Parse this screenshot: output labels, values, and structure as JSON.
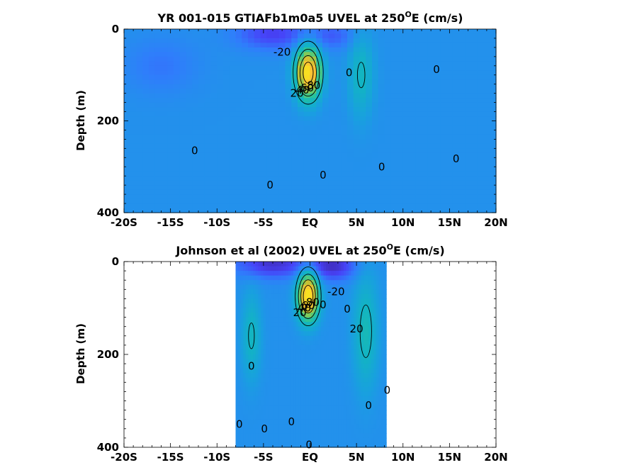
{
  "chart_data": [
    {
      "type": "heatmap",
      "title": "YR 001-015 GTIAFb1m0a5 UVEL at 250",
      "title_sup": "O",
      "title_tail": "E (cm/s)",
      "xlabel": "",
      "ylabel": "Depth (m)",
      "xlim": [
        -20,
        20
      ],
      "ylim": [
        400,
        0
      ],
      "x_ticks": [
        -20,
        -15,
        -10,
        -5,
        0,
        5,
        10,
        15,
        20
      ],
      "x_tick_labels": [
        "-20S",
        "-15S",
        "-10S",
        "-5S",
        "EQ",
        "5N",
        "10N",
        "15N",
        "20N"
      ],
      "y_ticks": [
        0,
        200,
        400
      ],
      "y_tick_labels": [
        "0",
        "200",
        "400"
      ],
      "data_extent_lat": [
        -20,
        20
      ],
      "contour_levels": [
        -20,
        0,
        20,
        40,
        60,
        80
      ],
      "contour_labels": [
        {
          "text": "-20",
          "lat": -3,
          "depth": 50
        },
        {
          "text": "0",
          "lat": 4.2,
          "depth": 95
        },
        {
          "text": "0",
          "lat": 13.6,
          "depth": 88
        },
        {
          "text": "20",
          "lat": -1.4,
          "depth": 140
        },
        {
          "text": "40",
          "lat": -0.8,
          "depth": 133
        },
        {
          "text": "60",
          "lat": -0.3,
          "depth": 128
        },
        {
          "text": "80",
          "lat": 0.4,
          "depth": 123
        },
        {
          "text": "0",
          "lat": -12.4,
          "depth": 265
        },
        {
          "text": "0",
          "lat": -4.3,
          "depth": 340
        },
        {
          "text": "0",
          "lat": 1.4,
          "depth": 318
        },
        {
          "text": "0",
          "lat": 7.7,
          "depth": 300
        },
        {
          "text": "0",
          "lat": 15.7,
          "depth": 283
        }
      ],
      "jets": [
        {
          "lat": -0.2,
          "depth": 95,
          "peak": 95,
          "lat_width": 1.3,
          "depth_width": 55
        },
        {
          "lat": 5.5,
          "depth": 100,
          "peak": 22,
          "lat_width": 1.3,
          "depth_width": 90
        }
      ],
      "westward": [
        {
          "lat": -4,
          "depth": 10,
          "value": -24,
          "lat_width": 4,
          "depth_width": 35
        },
        {
          "lat": 2.5,
          "depth": 15,
          "value": -15,
          "lat_width": 2.5,
          "depth_width": 30
        },
        {
          "lat": -16,
          "depth": 80,
          "value": -10,
          "lat_width": 4,
          "depth_width": 60
        }
      ],
      "colormap": [
        "#3e26a8",
        "#4743f8",
        "#2f7efb",
        "#199fe0",
        "#12b4c3",
        "#29c29a",
        "#72cc62",
        "#c5c033",
        "#fbbf35",
        "#f9e021"
      ],
      "color_range": [
        -35,
        95
      ]
    },
    {
      "type": "heatmap",
      "title": "Johnson et al (2002) UVEL at 250",
      "title_sup": "O",
      "title_tail": "E (cm/s)",
      "xlabel": "",
      "ylabel": "Depth (m)",
      "xlim": [
        -20,
        20
      ],
      "ylim": [
        400,
        0
      ],
      "x_ticks": [
        -20,
        -15,
        -10,
        -5,
        0,
        5,
        10,
        15,
        20
      ],
      "x_tick_labels": [
        "-20S",
        "-15S",
        "-10S",
        "-5S",
        "EQ",
        "5N",
        "10N",
        "15N",
        "20N"
      ],
      "y_ticks": [
        0,
        200,
        400
      ],
      "y_tick_labels": [
        "0",
        "200",
        "400"
      ],
      "data_extent_lat": [
        -8,
        8.2
      ],
      "contour_levels": [
        -20,
        0,
        20,
        40,
        60,
        80
      ],
      "contour_labels": [
        {
          "text": "-20",
          "lat": 2.8,
          "depth": 65
        },
        {
          "text": "0",
          "lat": -6.3,
          "depth": 225
        },
        {
          "text": "0",
          "lat": -7.6,
          "depth": 350
        },
        {
          "text": "0",
          "lat": -4.9,
          "depth": 360
        },
        {
          "text": "0",
          "lat": -2,
          "depth": 345
        },
        {
          "text": "0",
          "lat": 1.4,
          "depth": 93
        },
        {
          "text": "0",
          "lat": 4,
          "depth": 102
        },
        {
          "text": "0",
          "lat": -0.1,
          "depth": 395
        },
        {
          "text": "0",
          "lat": 6.3,
          "depth": 310
        },
        {
          "text": "0",
          "lat": 8.3,
          "depth": 277
        },
        {
          "text": "20",
          "lat": 5,
          "depth": 145
        },
        {
          "text": "20",
          "lat": -1.1,
          "depth": 110
        },
        {
          "text": "40",
          "lat": -0.6,
          "depth": 100
        },
        {
          "text": "60",
          "lat": -0.2,
          "depth": 95
        },
        {
          "text": "80",
          "lat": 0.3,
          "depth": 88
        }
      ],
      "jets": [
        {
          "lat": -0.2,
          "depth": 75,
          "peak": 100,
          "lat_width": 1.1,
          "depth_width": 50
        },
        {
          "lat": 6,
          "depth": 150,
          "peak": 25,
          "lat_width": 1.3,
          "depth_width": 120
        },
        {
          "lat": -6.3,
          "depth": 160,
          "peak": 22,
          "lat_width": 1.0,
          "depth_width": 90
        }
      ],
      "westward": [
        {
          "lat": -4,
          "depth": 5,
          "value": -30,
          "lat_width": 4,
          "depth_width": 30
        },
        {
          "lat": 2.5,
          "depth": 10,
          "value": -30,
          "lat_width": 2.5,
          "depth_width": 30
        }
      ],
      "colormap": [
        "#3e26a8",
        "#4743f8",
        "#2f7efb",
        "#199fe0",
        "#12b4c3",
        "#29c29a",
        "#72cc62",
        "#c5c033",
        "#fbbf35",
        "#f9e021"
      ],
      "color_range": [
        -35,
        95
      ]
    }
  ]
}
